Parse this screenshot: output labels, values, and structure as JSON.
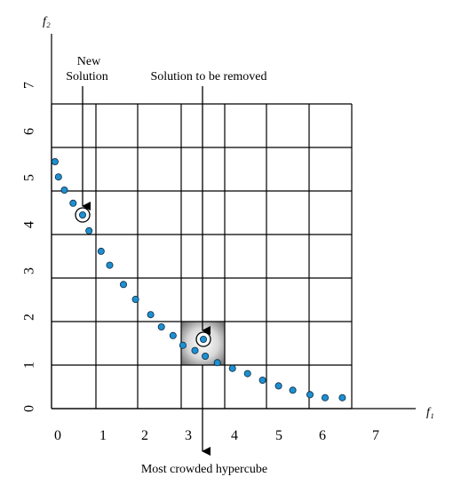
{
  "axes": {
    "x_label": "f₁",
    "y_label": "f₂",
    "x_ticks": [
      "0",
      "1",
      "2",
      "3",
      "4",
      "5",
      "6",
      "7"
    ],
    "y_ticks": [
      "0",
      "1",
      "2",
      "3",
      "4",
      "5",
      "6",
      "7"
    ]
  },
  "annotations": {
    "new_solution_line1": "New",
    "new_solution_line2": "Solution",
    "to_be_removed": "Solution to be removed",
    "most_crowded": "Most crowded hypercube"
  },
  "colors": {
    "point_fill": "#1e8fd0",
    "point_stroke": "#0a2a44",
    "grid": "#000000",
    "highlight_center": "#ffffff",
    "highlight_edge": "#7a7a7a"
  },
  "points": [
    {
      "f1": 0.08,
      "f2": 5.65
    },
    {
      "f1": 0.16,
      "f2": 5.3
    },
    {
      "f1": 0.3,
      "f2": 5.0
    },
    {
      "f1": 0.5,
      "f2": 4.7
    },
    {
      "f1": 0.87,
      "f2": 4.07
    },
    {
      "f1": 1.15,
      "f2": 3.6
    },
    {
      "f1": 1.35,
      "f2": 3.28
    },
    {
      "f1": 1.67,
      "f2": 2.84
    },
    {
      "f1": 1.95,
      "f2": 2.5
    },
    {
      "f1": 2.3,
      "f2": 2.15
    },
    {
      "f1": 2.55,
      "f2": 1.87
    },
    {
      "f1": 2.82,
      "f2": 1.67
    },
    {
      "f1": 3.05,
      "f2": 1.45
    },
    {
      "f1": 3.33,
      "f2": 1.33
    },
    {
      "f1": 3.57,
      "f2": 1.2
    },
    {
      "f1": 3.85,
      "f2": 1.05
    },
    {
      "f1": 4.2,
      "f2": 0.92
    },
    {
      "f1": 4.55,
      "f2": 0.8
    },
    {
      "f1": 4.9,
      "f2": 0.65
    },
    {
      "f1": 5.27,
      "f2": 0.52
    },
    {
      "f1": 5.6,
      "f2": 0.42
    },
    {
      "f1": 6.0,
      "f2": 0.32
    },
    {
      "f1": 6.35,
      "f2": 0.25
    },
    {
      "f1": 6.75,
      "f2": 0.25
    }
  ],
  "new_solution": {
    "f1": 0.68,
    "f2": 4.37
  },
  "removed_solution": {
    "f1": 3.5,
    "f2": 1.57
  }
}
